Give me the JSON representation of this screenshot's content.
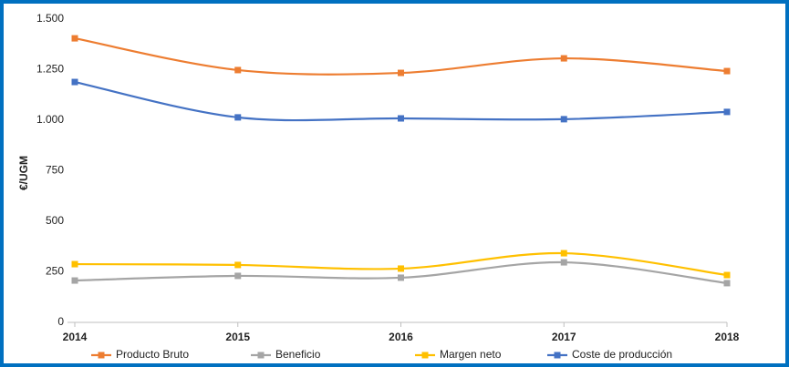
{
  "chart_data": {
    "type": "line",
    "y_label": "€/UGM",
    "categories": [
      "2014",
      "2015",
      "2016",
      "2017",
      "2018"
    ],
    "series": [
      {
        "name": "Producto Bruto",
        "color": "#ed7d31",
        "values": [
          1405,
          1248,
          1234,
          1306,
          1243
        ]
      },
      {
        "name": "Beneficio",
        "color": "#a5a5a5",
        "values": [
          207,
          230,
          221,
          297,
          194
        ]
      },
      {
        "name": "Margen neto",
        "color": "#ffc000",
        "values": [
          288,
          284,
          266,
          342,
          234
        ]
      },
      {
        "name": "Coste de producción",
        "color": "#4472c4",
        "values": [
          1189,
          1014,
          1009,
          1005,
          1041
        ]
      }
    ],
    "ylim": [
      0,
      1500
    ],
    "yticks": [
      0,
      250,
      500,
      750,
      {
        "value": 1000,
        "label": "1.000"
      },
      {
        "value": 1250,
        "label": "1.250"
      },
      {
        "value": 1500,
        "label": "1.500"
      }
    ],
    "smooth": true,
    "grid": false,
    "legend": "bottom"
  }
}
